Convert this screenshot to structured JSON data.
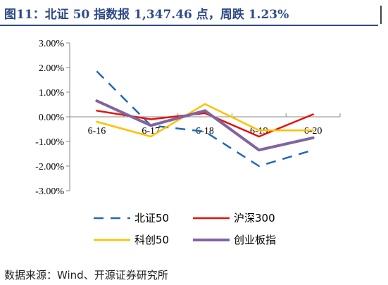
{
  "header": {
    "title": "图11：北证 50 指数报 1,347.46 点，周跌 1.23%"
  },
  "footer": {
    "source": "数据来源：Wind、开源证券研究所"
  },
  "chart_data": {
    "type": "line",
    "categories": [
      "6-16",
      "6-17",
      "6-18",
      "6-19",
      "6-20"
    ],
    "ylim": [
      -3.0,
      3.0
    ],
    "yticks": [
      "3.00%",
      "2.00%",
      "1.00%",
      "0.00%",
      "-1.00%",
      "-2.00%",
      "-3.00%"
    ],
    "ytick_values": [
      3,
      2,
      1,
      0,
      -1,
      -2,
      -3
    ],
    "series": [
      {
        "name": "北证50",
        "color": "#1f6bb5",
        "dash": "dashed",
        "values": [
          1.85,
          -0.35,
          -0.6,
          -2.0,
          -1.35
        ]
      },
      {
        "name": "沪深300",
        "color": "#e3120b",
        "dash": "solid",
        "values": [
          0.25,
          -0.1,
          0.15,
          -0.8,
          0.1
        ]
      },
      {
        "name": "科创50",
        "color": "#ffc000",
        "dash": "solid",
        "values": [
          -0.2,
          -0.8,
          0.52,
          -0.55,
          -0.55
        ]
      },
      {
        "name": "创业板指",
        "color": "#8064a2",
        "dash": "solid",
        "values": [
          0.65,
          -0.35,
          0.25,
          -1.35,
          -0.85
        ]
      }
    ],
    "legend": "bottom",
    "grid": false
  }
}
